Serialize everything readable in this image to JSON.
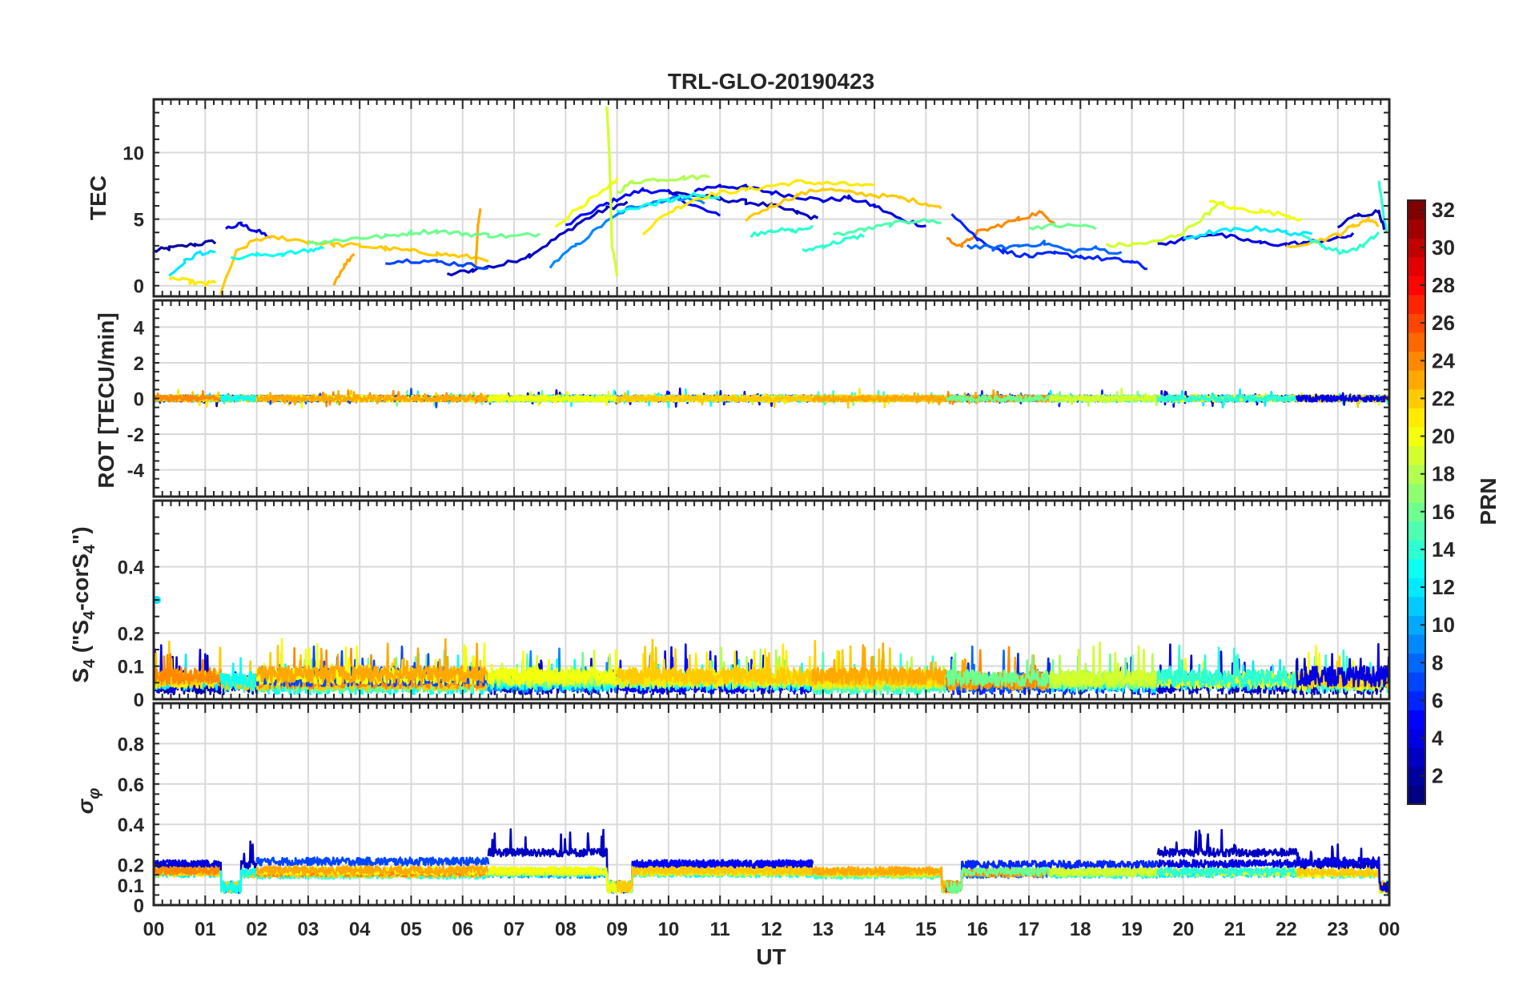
{
  "chart_data": {
    "type": "line",
    "title": "TRL-GLO-20190423",
    "xlabel": "UT",
    "xlim": [
      0,
      24
    ],
    "x_ticks": [
      "00",
      "01",
      "02",
      "03",
      "04",
      "05",
      "06",
      "07",
      "08",
      "09",
      "10",
      "11",
      "12",
      "13",
      "14",
      "15",
      "16",
      "17",
      "18",
      "19",
      "20",
      "21",
      "22",
      "23",
      "00"
    ],
    "colorbar": {
      "label": "PRN",
      "range": [
        1,
        32
      ],
      "ticks": [
        "2",
        "4",
        "6",
        "8",
        "10",
        "12",
        "14",
        "16",
        "18",
        "20",
        "22",
        "24",
        "26",
        "28",
        "30",
        "32"
      ]
    },
    "panels": [
      {
        "name": "tec",
        "ylabel": "TEC",
        "ylim": [
          -0.8,
          14
        ],
        "yticks": [
          0,
          5,
          10
        ],
        "series": [
          {
            "prn": 2,
            "x": [
              0,
              0.3,
              0.8,
              1.2
            ],
            "y": [
              2.6,
              2.8,
              3.1,
              3.3
            ]
          },
          {
            "prn": 4,
            "x": [
              1.4,
              1.7,
              2.0,
              2.3
            ],
            "y": [
              4.3,
              4.6,
              4.1,
              3.6
            ]
          },
          {
            "prn": 3,
            "x": [
              5.7,
              6.2,
              6.8,
              7.3,
              7.8,
              8.3,
              8.8,
              9.2
            ],
            "y": [
              0.8,
              1.2,
              1.6,
              2.3,
              3.5,
              4.8,
              5.8,
              6.2
            ]
          },
          {
            "prn": 5,
            "x": [
              8.0,
              8.6,
              9.0,
              9.5,
              10.0,
              10.5,
              11.0
            ],
            "y": [
              4.5,
              5.8,
              6.5,
              7.2,
              7.0,
              6.0,
              5.2
            ]
          },
          {
            "prn": 4,
            "x": [
              10.5,
              11.0,
              11.5,
              12.0,
              12.5,
              13.0,
              13.5,
              14.0,
              14.5,
              15.0
            ],
            "y": [
              7.2,
              7.5,
              7.4,
              7.0,
              6.7,
              6.4,
              6.6,
              6.0,
              5.0,
              4.5
            ]
          },
          {
            "prn": 3,
            "x": [
              10.0,
              10.5,
              11.0,
              11.5,
              12.0,
              12.5,
              12.9
            ],
            "y": [
              7.0,
              6.8,
              6.5,
              6.3,
              6.0,
              5.5,
              5.0
            ]
          },
          {
            "prn": 9,
            "x": [
              7.7,
              8.2,
              8.7,
              9.2,
              9.7,
              10.2,
              10.7
            ],
            "y": [
              1.5,
              3.0,
              4.5,
              5.8,
              6.3,
              6.6,
              6.3
            ]
          },
          {
            "prn": 13,
            "x": [
              9.0,
              9.5,
              10.0,
              10.5,
              11.0
            ],
            "y": [
              5.5,
              6.0,
              6.4,
              6.8,
              6.5
            ]
          },
          {
            "prn": 20,
            "x": [
              7.8,
              8.3,
              8.8,
              9.0
            ],
            "y": [
              4.5,
              6.0,
              7.2,
              8.0
            ]
          },
          {
            "prn": 19,
            "x": [
              8.8,
              8.85,
              8.9,
              9.0
            ],
            "y": [
              13.5,
              10.0,
              3.0,
              0.8
            ]
          },
          {
            "prn": 18,
            "x": [
              9.0,
              9.3,
              9.8,
              10.3,
              10.8
            ],
            "y": [
              7.0,
              7.8,
              8.0,
              8.1,
              8.2
            ]
          },
          {
            "prn": 21,
            "x": [
              9.5,
              10.0,
              10.5,
              11.0,
              11.5,
              12.0,
              12.5,
              13.0,
              13.5,
              14.0
            ],
            "y": [
              4.0,
              5.5,
              6.5,
              7.0,
              7.2,
              7.5,
              7.8,
              7.7,
              7.6,
              7.4
            ]
          },
          {
            "prn": 22,
            "x": [
              11.5,
              12.0,
              12.5,
              13.0,
              13.5,
              14.0,
              14.5,
              15.0,
              15.3
            ],
            "y": [
              5.0,
              6.0,
              6.8,
              7.3,
              7.0,
              6.8,
              6.6,
              6.2,
              5.8
            ]
          },
          {
            "prn": 14,
            "x": [
              11.6,
              12.0,
              12.4,
              12.8
            ],
            "y": [
              3.8,
              4.2,
              4.1,
              4.4
            ]
          },
          {
            "prn": 14,
            "x": [
              12.6,
              13.0,
              13.4,
              13.8
            ],
            "y": [
              2.6,
              3.0,
              3.4,
              3.8
            ]
          },
          {
            "prn": 15,
            "x": [
              13.2,
              13.8,
              14.3,
              14.8,
              15.3
            ],
            "y": [
              3.8,
              4.2,
              4.6,
              4.9,
              4.8
            ]
          },
          {
            "prn": 12,
            "x": [
              0.3,
              0.6,
              0.9,
              1.2
            ],
            "y": [
              0.7,
              1.8,
              2.5,
              2.4
            ]
          },
          {
            "prn": 21,
            "x": [
              0.3,
              0.7,
              1.0,
              1.2
            ],
            "y": [
              0.6,
              0.3,
              0.1,
              0.3
            ]
          },
          {
            "prn": 22,
            "x": [
              1.3,
              1.6,
              2.0,
              2.5,
              3.0,
              3.5,
              4.0,
              4.5,
              5.0,
              5.5,
              6.0,
              6.5
            ],
            "y": [
              -0.6,
              2.5,
              3.5,
              3.6,
              3.3,
              3.1,
              3.0,
              2.8,
              2.6,
              2.4,
              2.2,
              2.0
            ]
          },
          {
            "prn": 23,
            "x": [
              6.25,
              6.3,
              6.35
            ],
            "y": [
              1.2,
              4.5,
              5.8
            ]
          },
          {
            "prn": 23,
            "x": [
              3.5,
              3.7,
              3.9
            ],
            "y": [
              0.2,
              1.5,
              2.5
            ]
          },
          {
            "prn": 16,
            "x": [
              3.0,
              3.5,
              4.0,
              4.5,
              5.0,
              5.5,
              6.0,
              6.5,
              7.0,
              7.5
            ],
            "y": [
              3.2,
              3.4,
              3.6,
              3.7,
              4.0,
              4.1,
              3.9,
              3.8,
              3.7,
              3.9
            ]
          },
          {
            "prn": 7,
            "x": [
              4.5,
              5.0,
              5.5,
              6.0,
              6.5
            ],
            "y": [
              1.8,
              1.9,
              1.8,
              1.6,
              1.4
            ]
          },
          {
            "prn": 13,
            "x": [
              1.5,
              2.0,
              2.5,
              3.0,
              3.3
            ],
            "y": [
              2.0,
              2.3,
              2.4,
              2.6,
              2.9
            ]
          },
          {
            "prn": 24,
            "x": [
              15.4,
              15.7,
              16.0,
              16.4,
              16.8,
              17.2,
              17.5
            ],
            "y": [
              3.5,
              3.0,
              4.0,
              4.5,
              5.0,
              5.5,
              4.8
            ]
          },
          {
            "prn": 6,
            "x": [
              15.5,
              16.0,
              16.5,
              17.0,
              17.5,
              18.0,
              18.5,
              19.0,
              19.3
            ],
            "y": [
              5.5,
              3.5,
              2.6,
              2.2,
              2.4,
              2.2,
              2.0,
              1.8,
              1.3
            ]
          },
          {
            "prn": 8,
            "x": [
              15.8,
              16.3,
              16.8,
              17.3,
              17.8,
              18.3,
              18.8
            ],
            "y": [
              3.0,
              2.8,
              3.0,
              3.2,
              2.6,
              2.8,
              2.4
            ]
          },
          {
            "prn": 16,
            "x": [
              17.0,
              17.5,
              18.0,
              18.3
            ],
            "y": [
              4.4,
              4.5,
              4.5,
              4.4
            ]
          },
          {
            "prn": 19,
            "x": [
              18.5,
              19.0,
              19.5,
              20.0,
              20.5,
              20.8
            ],
            "y": [
              3.0,
              3.1,
              3.3,
              4.0,
              5.5,
              6.4
            ]
          },
          {
            "prn": 20,
            "x": [
              20.5,
              21.0,
              21.5,
              22.0,
              22.3
            ],
            "y": [
              6.3,
              5.8,
              5.6,
              5.3,
              5.0
            ]
          },
          {
            "prn": 4,
            "x": [
              19.5,
              20.0,
              20.5,
              21.0,
              21.5,
              22.0,
              22.5,
              23.0,
              23.3
            ],
            "y": [
              3.0,
              3.5,
              3.9,
              3.6,
              3.2,
              3.1,
              3.3,
              3.6,
              3.8
            ]
          },
          {
            "prn": 12,
            "x": [
              20.0,
              20.5,
              21.0,
              21.5,
              22.0,
              22.5
            ],
            "y": [
              3.5,
              4.0,
              4.2,
              4.3,
              4.0,
              3.8
            ]
          },
          {
            "prn": 22,
            "x": [
              22.0,
              22.5,
              23.0,
              23.3,
              23.6,
              23.8
            ],
            "y": [
              3.0,
              3.3,
              3.8,
              4.5,
              5.0,
              4.6
            ]
          },
          {
            "prn": 14,
            "x": [
              22.3,
              22.7,
              23.1,
              23.5,
              23.8
            ],
            "y": [
              3.8,
              3.0,
              2.5,
              3.0,
              4.0
            ]
          },
          {
            "prn": 14,
            "x": [
              23.8,
              23.9,
              23.95
            ],
            "y": [
              7.8,
              5.0,
              4.0
            ]
          },
          {
            "prn": 3,
            "x": [
              23.0,
              23.4,
              23.8,
              23.9
            ],
            "y": [
              4.5,
              5.3,
              5.6,
              4.3
            ]
          }
        ]
      },
      {
        "name": "rot",
        "ylabel": "ROT [TECU/min]",
        "ylim": [
          -5.5,
          5.5
        ],
        "yticks": [
          -4,
          -2,
          0,
          2,
          4
        ],
        "series": []
      },
      {
        "name": "s4",
        "ylabel": "S4 (\"S4-corS4\")",
        "ylim": [
          0,
          0.6
        ],
        "yticks": [
          0,
          0.1,
          0.2,
          0.4
        ],
        "series": []
      },
      {
        "name": "sigma",
        "ylabel": "σφ",
        "ylim": [
          0,
          1
        ],
        "yticks": [
          0,
          0.1,
          0.2,
          0.4,
          0.6,
          0.8
        ],
        "series": []
      }
    ],
    "ylabel_parts": {
      "s4_main": "S",
      "s4_sub1": "4",
      "s4_mid": " (\"S",
      "s4_sub2": "4",
      "s4_mid2": "-corS",
      "s4_sub3": "4",
      "s4_end": "\")",
      "sigma_main": "σ",
      "sigma_sub": "φ"
    },
    "segments": [
      {
        "t0": 0.0,
        "t1": 1.3,
        "prns": [
          2,
          4,
          12,
          21,
          22,
          24
        ]
      },
      {
        "t0": 1.3,
        "t1": 2.0,
        "prns": [
          3,
          14,
          22,
          13
        ]
      },
      {
        "t0": 2.0,
        "t1": 6.5,
        "prns": [
          13,
          16,
          22,
          24,
          7,
          20,
          23
        ]
      },
      {
        "t0": 6.5,
        "t1": 9.0,
        "prns": [
          3,
          9,
          13,
          16,
          19,
          20
        ]
      },
      {
        "t0": 9.0,
        "t1": 12.8,
        "prns": [
          4,
          5,
          13,
          18,
          21,
          22
        ]
      },
      {
        "t0": 12.8,
        "t1": 15.4,
        "prns": [
          14,
          15,
          18,
          21,
          22,
          23
        ]
      },
      {
        "t0": 15.4,
        "t1": 17.4,
        "prns": [
          6,
          8,
          23,
          24,
          16
        ]
      },
      {
        "t0": 17.4,
        "t1": 19.5,
        "prns": [
          6,
          12,
          16,
          18,
          19
        ]
      },
      {
        "t0": 19.5,
        "t1": 22.2,
        "prns": [
          3,
          4,
          12,
          20,
          14
        ]
      },
      {
        "t0": 22.2,
        "t1": 24.0,
        "prns": [
          3,
          14,
          20,
          22,
          4
        ]
      }
    ]
  }
}
